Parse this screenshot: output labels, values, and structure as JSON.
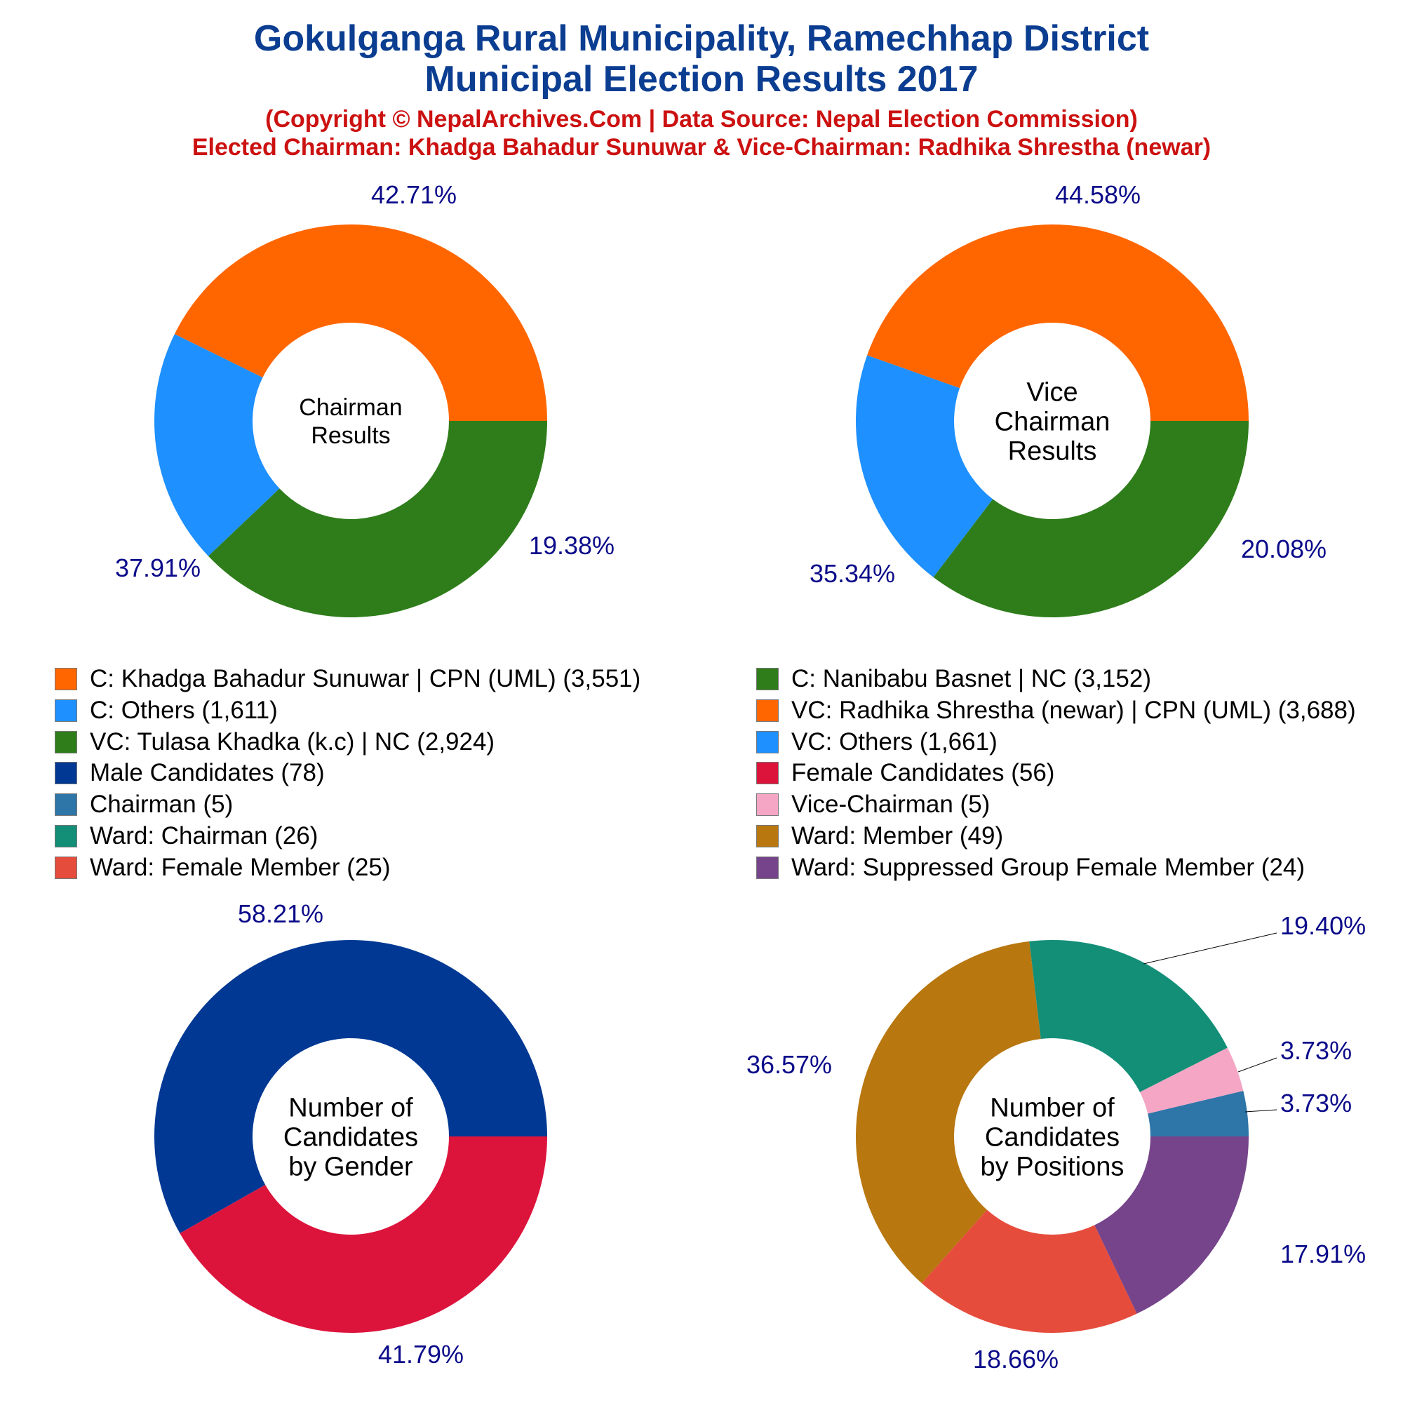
{
  "header": {
    "title_line1": "Gokulganga Rural Municipality, Ramechhap District",
    "title_line2": "Municipal Election Results 2017",
    "subtitle_line1": "(Copyright © NepalArchives.Com | Data Source: Nepal Election Commission)",
    "subtitle_line2": "Elected Chairman: Khadga Bahadur Sunuwar & Vice-Chairman: Radhika Shrestha (newar)"
  },
  "legend": [
    {
      "label": "C: Khadga Bahadur Sunuwar | CPN (UML) (3,551)",
      "color": "#ff6600"
    },
    {
      "label": "C: Nanibabu Basnet | NC (3,152)",
      "color": "#2e7d1a"
    },
    {
      "label": "C: Others (1,611)",
      "color": "#1e90ff"
    },
    {
      "label": "VC: Radhika Shrestha (newar) | CPN (UML) (3,688)",
      "color": "#ff6600"
    },
    {
      "label": "VC: Tulasa Khadka (k.c) | NC (2,924)",
      "color": "#2e7d1a"
    },
    {
      "label": "VC: Others (1,661)",
      "color": "#1e90ff"
    },
    {
      "label": "Male Candidates (78)",
      "color": "#003893"
    },
    {
      "label": "Female Candidates (56)",
      "color": "#dc143c"
    },
    {
      "label": "Chairman (5)",
      "color": "#2e75a8"
    },
    {
      "label": "Vice-Chairman (5)",
      "color": "#f4a6c4"
    },
    {
      "label": "Ward: Chairman (26)",
      "color": "#138f78"
    },
    {
      "label": "Ward: Member (49)",
      "color": "#b8770f"
    },
    {
      "label": "Ward: Female Member (25)",
      "color": "#e64c3c"
    },
    {
      "label": "Ward: Suppressed Group Female Member (24)",
      "color": "#76448a"
    }
  ],
  "chart_data": [
    {
      "type": "pie",
      "center_label": [
        "Chairman",
        "Results"
      ],
      "slices": [
        {
          "name": "C: Khadga Bahadur Sunuwar | CPN (UML)",
          "value": 3551,
          "label": "42.71%",
          "color": "#ff6600"
        },
        {
          "name": "C: Others",
          "value": 1611,
          "label": "19.38%",
          "color": "#1e90ff"
        },
        {
          "name": "C: Nanibabu Basnet | NC",
          "value": 3152,
          "label": "37.91%",
          "color": "#2e7d1a"
        }
      ]
    },
    {
      "type": "pie",
      "center_label": [
        "Vice",
        "Chairman",
        "Results"
      ],
      "slices": [
        {
          "name": "VC: Radhika Shrestha (newar) | CPN (UML)",
          "value": 3688,
          "label": "44.58%",
          "color": "#ff6600"
        },
        {
          "name": "VC: Others",
          "value": 1661,
          "label": "20.08%",
          "color": "#1e90ff"
        },
        {
          "name": "VC: Tulasa Khadka (k.c) | NC",
          "value": 2924,
          "label": "35.34%",
          "color": "#2e7d1a"
        }
      ]
    },
    {
      "type": "pie",
      "center_label": [
        "Number of",
        "Candidates",
        "by Gender"
      ],
      "slices": [
        {
          "name": "Male Candidates",
          "value": 78,
          "label": "58.21%",
          "color": "#003893"
        },
        {
          "name": "Female Candidates",
          "value": 56,
          "label": "41.79%",
          "color": "#dc143c"
        }
      ]
    },
    {
      "type": "pie",
      "center_label": [
        "Number of",
        "Candidates",
        "by Positions"
      ],
      "slices": [
        {
          "name": "Chairman",
          "value": 5,
          "label": "3.73%",
          "color": "#2e75a8"
        },
        {
          "name": "Vice-Chairman",
          "value": 5,
          "label": "3.73%",
          "color": "#f4a6c4"
        },
        {
          "name": "Ward: Chairman",
          "value": 26,
          "label": "19.40%",
          "color": "#138f78"
        },
        {
          "name": "Ward: Member",
          "value": 49,
          "label": "36.57%",
          "color": "#b8770f"
        },
        {
          "name": "Ward: Female Member",
          "value": 25,
          "label": "18.66%",
          "color": "#e64c3c"
        },
        {
          "name": "Ward: Suppressed Group Female Member",
          "value": 24,
          "label": "17.91%",
          "color": "#76448a"
        }
      ]
    }
  ]
}
